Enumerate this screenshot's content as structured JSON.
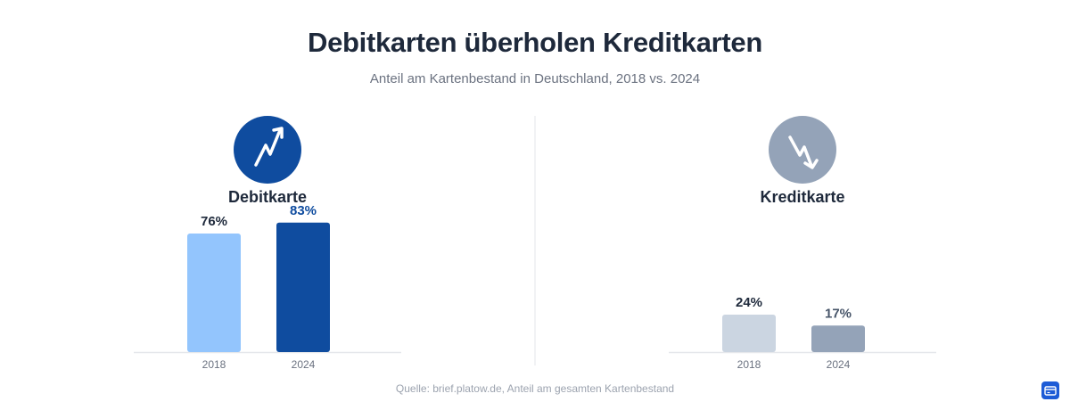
{
  "title": "Debitkarten überholen Kreditkarten",
  "subtitle": "Anteil am Kartenbestand in Deutschland, 2018 vs. 2024",
  "source": "Quelle: brief.platow.de, Anteil am gesamten Kartenbestand",
  "panels": [
    {
      "label": "Debitkarte",
      "icon": "trend-up-icon",
      "icon_bg": "#0f4c9f"
    },
    {
      "label": "Kreditkarte",
      "icon": "trend-down-icon",
      "icon_bg": "#94a3b8"
    }
  ],
  "chart_data": [
    {
      "type": "bar",
      "title": "Debitkarte",
      "categories": [
        "2018",
        "2024"
      ],
      "values": [
        76,
        83
      ],
      "value_labels": [
        "76%",
        "83%"
      ],
      "colors": [
        "#93c5fd",
        "#0f4c9f"
      ],
      "label_colors": [
        "#1e293b",
        "#0f4c9f"
      ],
      "ylim": [
        0,
        100
      ],
      "grid": false
    },
    {
      "type": "bar",
      "title": "Kreditkarte",
      "categories": [
        "2018",
        "2024"
      ],
      "values": [
        24,
        17
      ],
      "value_labels": [
        "24%",
        "17%"
      ],
      "colors": [
        "#cbd5e1",
        "#94a3b8"
      ],
      "label_colors": [
        "#1e293b",
        "#475569"
      ],
      "ylim": [
        0,
        100
      ],
      "grid": false
    }
  ],
  "corner_button": {
    "icon": "card-icon",
    "color": "#1d5bd6"
  }
}
